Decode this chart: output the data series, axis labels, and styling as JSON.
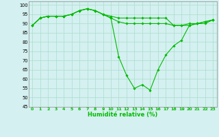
{
  "xlabel": "Humidité relative (%)",
  "xlim": [
    -0.5,
    23.5
  ],
  "ylim": [
    45,
    102
  ],
  "yticks": [
    45,
    50,
    55,
    60,
    65,
    70,
    75,
    80,
    85,
    90,
    95,
    100
  ],
  "xticks": [
    0,
    1,
    2,
    3,
    4,
    5,
    6,
    7,
    8,
    9,
    10,
    11,
    12,
    13,
    14,
    15,
    16,
    17,
    18,
    19,
    20,
    21,
    22,
    23
  ],
  "bg_color": "#d4f0f0",
  "grid_color": "#aaddcc",
  "line_color": "#00bb00",
  "line1": [
    89,
    93,
    94,
    94,
    94,
    95,
    97,
    98,
    97,
    95,
    94,
    93,
    93,
    93,
    93,
    93,
    93,
    93,
    89,
    89,
    89,
    90,
    91,
    92
  ],
  "line2": [
    89,
    93,
    94,
    94,
    94,
    95,
    97,
    98,
    97,
    95,
    93,
    72,
    62,
    55,
    57,
    54,
    65,
    73,
    78,
    81,
    89,
    90,
    90,
    92
  ],
  "line3": [
    89,
    93,
    94,
    94,
    94,
    95,
    97,
    98,
    97,
    95,
    93,
    91,
    90,
    90,
    90,
    90,
    90,
    90,
    89,
    89,
    90,
    90,
    91,
    92
  ]
}
